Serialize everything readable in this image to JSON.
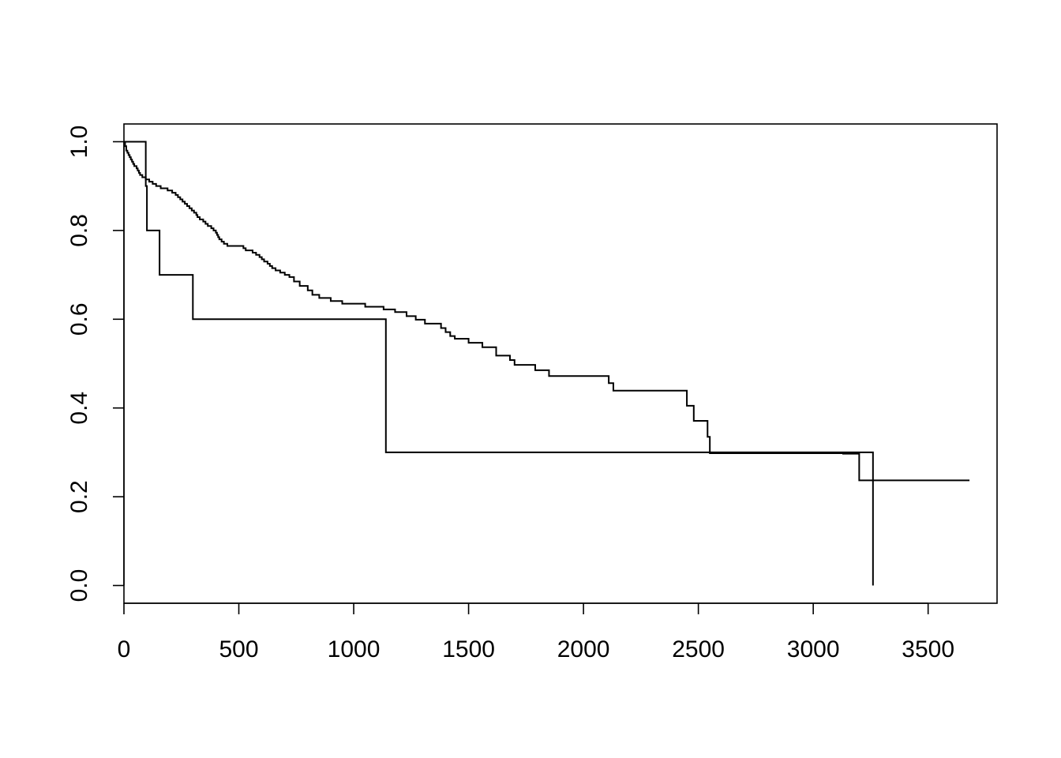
{
  "chart_data": {
    "type": "line",
    "step": true,
    "title": "",
    "xlabel": "",
    "ylabel": "",
    "xlim": [
      0,
      3800
    ],
    "ylim": [
      -0.04,
      1.04
    ],
    "x_ticks": [
      0,
      500,
      1000,
      1500,
      2000,
      2500,
      3000,
      3500
    ],
    "y_ticks": [
      0.0,
      0.2,
      0.4,
      0.6,
      0.8,
      1.0
    ],
    "x_tick_labels": [
      "0",
      "500",
      "1000",
      "1500",
      "2000",
      "2500",
      "3000",
      "3500"
    ],
    "y_tick_labels": [
      "0.0",
      "0.2",
      "0.4",
      "0.6",
      "0.8",
      "1.0"
    ],
    "grid": false,
    "line_color": "#000000",
    "series": [
      {
        "x": [
          0,
          5,
          10,
          15,
          20,
          25,
          30,
          35,
          40,
          45,
          50,
          55,
          60,
          65,
          70,
          80,
          95,
          110,
          125,
          140,
          160,
          190,
          210,
          225,
          235,
          245,
          255,
          265,
          275,
          285,
          295,
          305,
          315,
          320,
          330,
          345,
          355,
          365,
          380,
          390,
          400,
          405,
          410,
          415,
          425,
          435,
          450,
          520,
          530,
          560,
          575,
          590,
          600,
          610,
          625,
          635,
          645,
          660,
          680,
          700,
          720,
          740,
          765,
          800,
          820,
          850,
          900,
          950,
          1050,
          1130,
          1180,
          1230,
          1270,
          1310,
          1380,
          1400,
          1420,
          1440,
          1500,
          1560,
          1620,
          1680,
          1700,
          1790,
          1850,
          2110,
          2130,
          2450,
          2480,
          2540,
          2550,
          3130,
          3200,
          3680
        ],
        "y": [
          1.0,
          0.99,
          0.98,
          0.975,
          0.97,
          0.965,
          0.96,
          0.955,
          0.95,
          0.945,
          0.945,
          0.94,
          0.935,
          0.93,
          0.925,
          0.92,
          0.915,
          0.91,
          0.905,
          0.9,
          0.895,
          0.89,
          0.885,
          0.88,
          0.875,
          0.87,
          0.865,
          0.86,
          0.855,
          0.85,
          0.845,
          0.84,
          0.835,
          0.83,
          0.825,
          0.82,
          0.815,
          0.81,
          0.805,
          0.8,
          0.795,
          0.79,
          0.785,
          0.78,
          0.775,
          0.77,
          0.765,
          0.76,
          0.755,
          0.75,
          0.745,
          0.74,
          0.735,
          0.73,
          0.725,
          0.72,
          0.715,
          0.71,
          0.705,
          0.7,
          0.695,
          0.685,
          0.675,
          0.665,
          0.655,
          0.648,
          0.641,
          0.635,
          0.628,
          0.622,
          0.616,
          0.607,
          0.599,
          0.59,
          0.58,
          0.571,
          0.562,
          0.556,
          0.547,
          0.537,
          0.518,
          0.508,
          0.497,
          0.485,
          0.472,
          0.456,
          0.439,
          0.405,
          0.371,
          0.335,
          0.298,
          0.297,
          0.237,
          0.237
        ]
      },
      {
        "x": [
          0,
          90,
          95,
          100,
          155,
          300,
          1140,
          3260
        ],
        "y": [
          1.0,
          1.0,
          0.9,
          0.8,
          0.7,
          0.6,
          0.3,
          0.0
        ]
      }
    ]
  }
}
